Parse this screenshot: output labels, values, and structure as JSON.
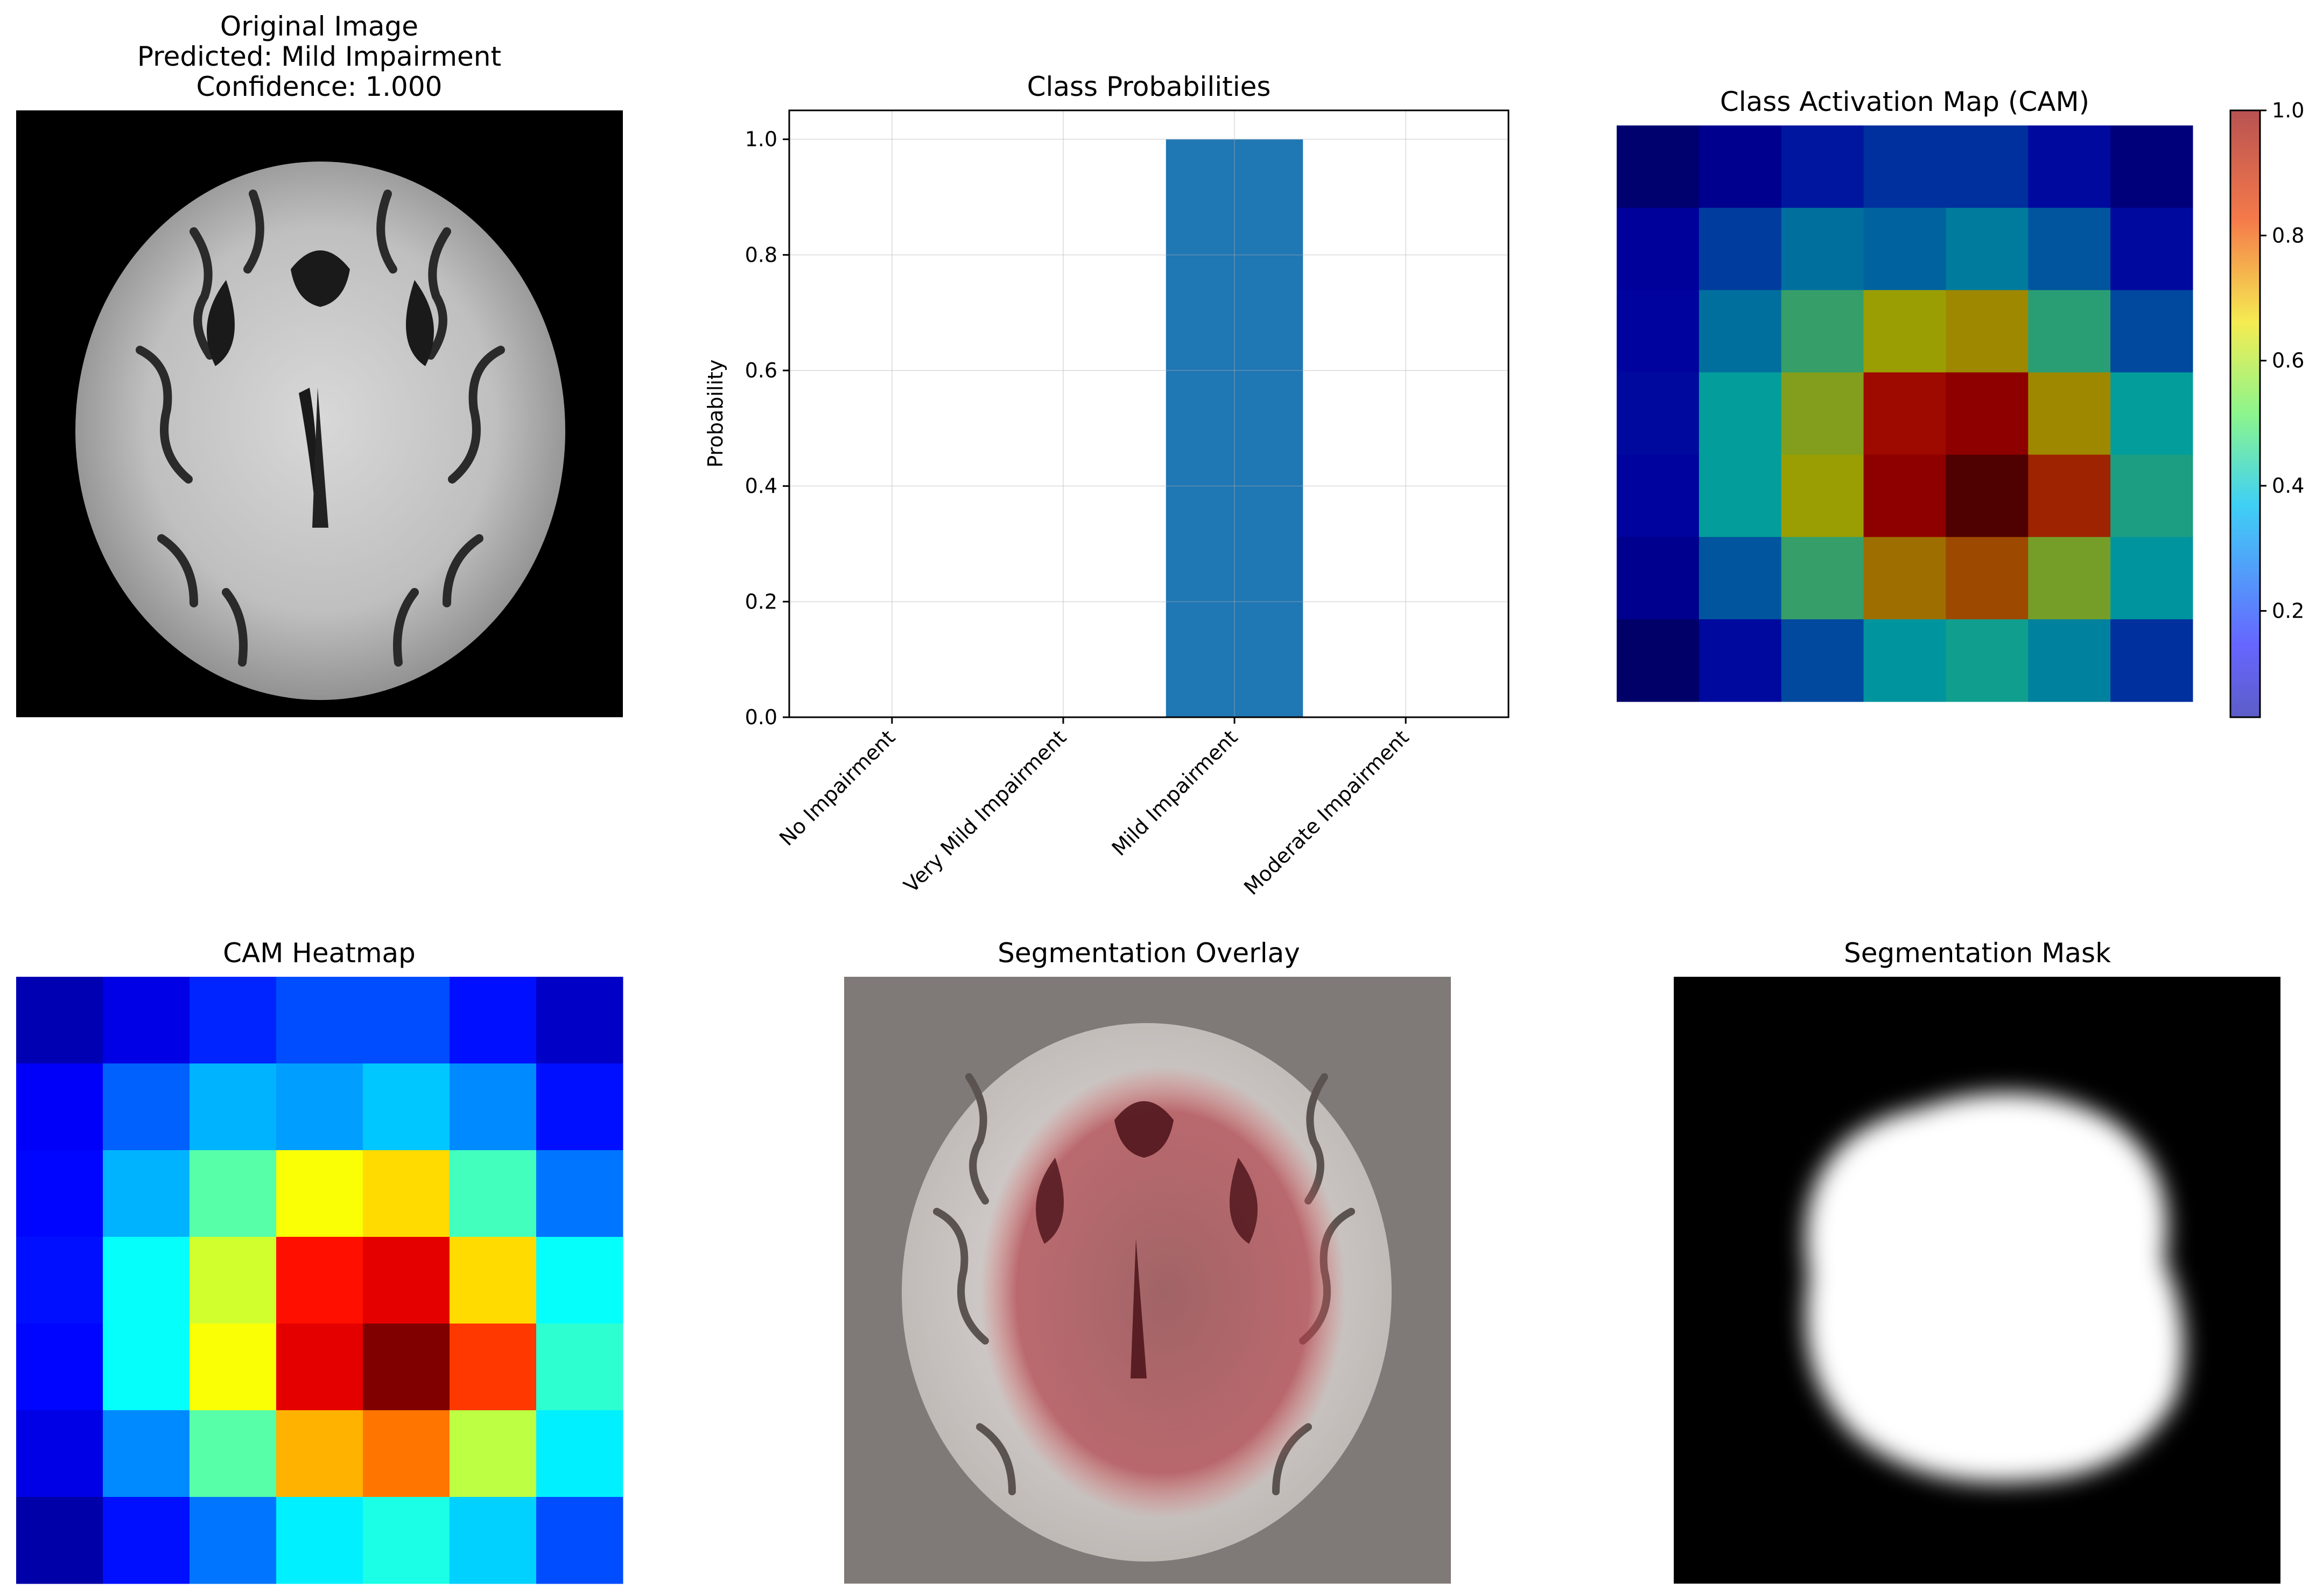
{
  "panels": {
    "original": {
      "title_line1": "Original Image",
      "title_line2": "Predicted: Mild Impairment",
      "title_line3": "Confidence: 1.000"
    },
    "cam": {
      "title": "Class Activation Map (CAM)",
      "colorbar_ticks": [
        "0.2",
        "0.4",
        "0.6",
        "0.8",
        "1.0"
      ]
    },
    "heatmap": {
      "title": "CAM Heatmap"
    },
    "overlay": {
      "title": "Segmentation Overlay"
    },
    "mask": {
      "title": "Segmentation Mask"
    }
  },
  "chart_data": {
    "type": "bar",
    "title": "Class Probabilities",
    "xlabel": "",
    "ylabel": "Probability",
    "categories": [
      "No Impairment",
      "Very Mild Impairment",
      "Mild Impairment",
      "Moderate Impairment"
    ],
    "values": [
      0.0,
      0.0,
      1.0,
      0.0
    ],
    "ylim": [
      0,
      1.05
    ],
    "yticks": [
      "0.0",
      "0.2",
      "0.4",
      "0.6",
      "0.8",
      "1.0"
    ],
    "grid": true,
    "bar_color": "#1f77b4"
  },
  "cam_grid": [
    [
      0.05,
      0.1,
      0.16,
      0.2,
      0.2,
      0.14,
      0.07
    ],
    [
      0.12,
      0.22,
      0.3,
      0.28,
      0.32,
      0.26,
      0.14
    ],
    [
      0.13,
      0.3,
      0.46,
      0.62,
      0.66,
      0.44,
      0.24
    ],
    [
      0.14,
      0.38,
      0.58,
      0.86,
      0.9,
      0.66,
      0.38
    ],
    [
      0.13,
      0.38,
      0.62,
      0.9,
      1.0,
      0.82,
      0.42
    ],
    [
      0.1,
      0.26,
      0.46,
      0.7,
      0.76,
      0.56,
      0.36
    ],
    [
      0.04,
      0.14,
      0.24,
      0.36,
      0.4,
      0.33,
      0.2
    ]
  ],
  "colors": {
    "bar": "#1f77b4",
    "overlay_background": "#7f7a77",
    "mask_background": "#000000"
  }
}
